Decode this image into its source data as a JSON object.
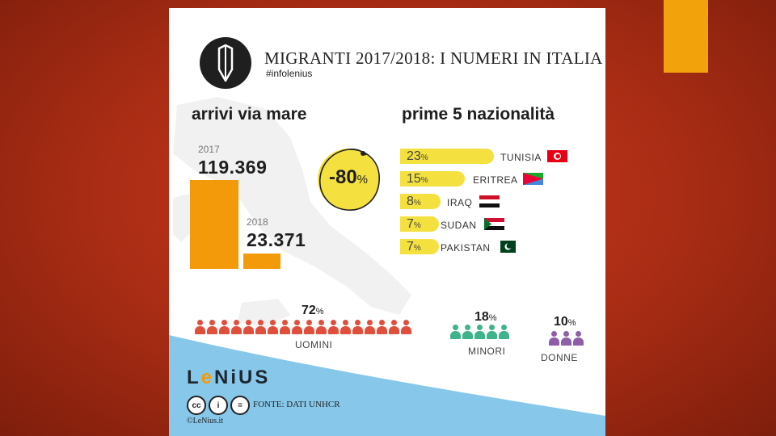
{
  "colors": {
    "background": "#b32f16",
    "accent": "#f2a30c",
    "yellow": "#f4e13f",
    "orange": "#f39a0a",
    "men": "#e04e3c",
    "minors": "#3fb38a",
    "women": "#8e5fa8",
    "wave": "#87c8ea"
  },
  "logo_icon": "pencil-icon",
  "title": "MIGRANTI 2017/2018: I NUMERI IN ITALIA",
  "hashtag": "#infolenius",
  "arrivals": {
    "heading": "arrivi via mare",
    "year_2017": "2017",
    "value_2017": "119.369",
    "year_2018": "2018",
    "value_2018": "23.371",
    "drop_value": "-80",
    "drop_pct": "%"
  },
  "nationalities": {
    "heading": "prime 5 nazionalità",
    "items": [
      {
        "pct": "23",
        "unit": "%",
        "name": "TUNISIA",
        "share": 23,
        "flag": "tunisia-flag-icon"
      },
      {
        "pct": "15",
        "unit": "%",
        "name": "ERITREA",
        "share": 15,
        "flag": "eritrea-flag-icon"
      },
      {
        "pct": "8",
        "unit": "%",
        "name": "IRAQ",
        "share": 8,
        "flag": "iraq-flag-icon"
      },
      {
        "pct": "7",
        "unit": "%",
        "name": "SUDAN",
        "share": 7,
        "flag": "sudan-flag-icon"
      },
      {
        "pct": "7",
        "unit": "%",
        "name": "PAKISTAN",
        "share": 7,
        "flag": "pakistan-flag-icon"
      }
    ]
  },
  "demographics": {
    "men": {
      "pct": "72",
      "unit": "%",
      "label": "UOMINI",
      "icons": 18
    },
    "minors": {
      "pct": "18",
      "unit": "%",
      "label": "MINORI",
      "icons": 5
    },
    "women": {
      "pct": "10",
      "unit": "%",
      "label": "DONNE",
      "icons": 3
    }
  },
  "brand": {
    "part1": "L",
    "part2": "e",
    "part3": "NiUS"
  },
  "license": {
    "cc": "cc",
    "by": "i",
    "nd": "="
  },
  "source": "FONTE: DATI UNHCR",
  "copyright": "©LeNius.it"
}
